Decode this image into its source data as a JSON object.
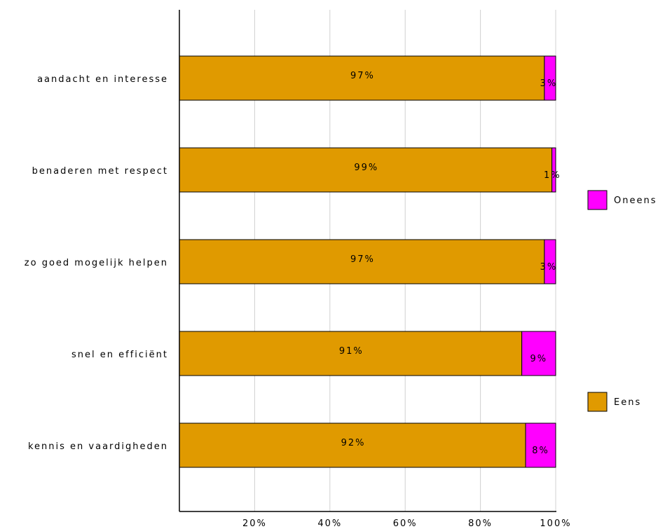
{
  "chart_data": {
    "type": "bar",
    "orientation": "horizontal",
    "stacked": true,
    "title": "",
    "xlabel": "",
    "ylabel": "",
    "xlim": [
      0,
      100
    ],
    "grid": true,
    "legend_position": "right",
    "categories": [
      "aandacht en interesse",
      "benaderen met respect",
      "zo goed mogelijk helpen",
      "snel en efficiënt",
      "kennis en vaardigheden"
    ],
    "x_ticks": [
      {
        "value": 20,
        "label": "20%"
      },
      {
        "value": 40,
        "label": "40%"
      },
      {
        "value": 60,
        "label": "60%"
      },
      {
        "value": 80,
        "label": "80%"
      },
      {
        "value": 100,
        "label": "100%"
      }
    ],
    "series": [
      {
        "name": "Eens",
        "color": "#E09A00",
        "values": [
          97,
          99,
          97,
          91,
          92
        ],
        "labels": [
          "97%",
          "99%",
          "97%",
          "91%",
          "92%"
        ]
      },
      {
        "name": "Oneens",
        "color": "#FF00FF",
        "values": [
          3,
          1,
          3,
          9,
          8
        ],
        "labels": [
          "3%",
          "1%",
          "3%",
          "9%",
          "8%"
        ]
      }
    ],
    "legend": [
      {
        "name": "Oneens",
        "color": "#FF00FF"
      },
      {
        "name": "Eens",
        "color": "#E09A00"
      }
    ]
  }
}
